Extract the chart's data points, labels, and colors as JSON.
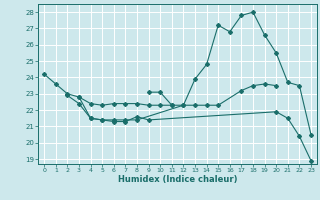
{
  "title": "",
  "xlabel": "Humidex (Indice chaleur)",
  "bg_color": "#cde8ec",
  "grid_color": "#ffffff",
  "line_color": "#1a6e6a",
  "xlim": [
    -0.5,
    23.5
  ],
  "ylim": [
    18.7,
    28.5
  ],
  "yticks": [
    19,
    20,
    21,
    22,
    23,
    24,
    25,
    26,
    27,
    28
  ],
  "xticks": [
    0,
    1,
    2,
    3,
    4,
    5,
    6,
    7,
    8,
    9,
    10,
    11,
    12,
    13,
    14,
    15,
    16,
    17,
    18,
    19,
    20,
    21,
    22,
    23
  ],
  "line1_x": [
    0,
    1,
    2,
    3,
    4,
    5,
    6,
    7,
    8,
    12,
    13,
    14,
    15,
    16,
    17,
    18,
    19,
    20,
    21,
    22,
    23
  ],
  "line1_y": [
    24.2,
    23.6,
    23.0,
    22.8,
    21.5,
    21.4,
    21.4,
    21.4,
    21.4,
    22.3,
    23.9,
    24.8,
    27.2,
    26.8,
    27.8,
    28.0,
    26.6,
    25.5,
    23.7,
    23.5,
    20.5
  ],
  "line2_x": [
    2,
    3,
    4,
    5,
    6,
    7,
    8,
    9,
    20,
    21,
    22,
    23
  ],
  "line2_y": [
    22.9,
    22.4,
    21.5,
    21.4,
    21.3,
    21.3,
    21.6,
    21.4,
    21.9,
    21.5,
    20.4,
    18.9
  ],
  "line3_x": [
    3,
    4,
    5,
    6,
    7,
    8,
    9,
    10,
    11,
    12,
    13,
    14,
    15,
    17,
    18,
    19,
    20
  ],
  "line3_y": [
    22.8,
    22.4,
    22.3,
    22.4,
    22.4,
    22.4,
    22.3,
    22.3,
    22.3,
    22.3,
    22.3,
    22.3,
    22.3,
    23.2,
    23.5,
    23.6,
    23.5
  ],
  "line4_x": [
    9,
    10,
    11
  ],
  "line4_y": [
    23.1,
    23.1,
    22.3
  ]
}
